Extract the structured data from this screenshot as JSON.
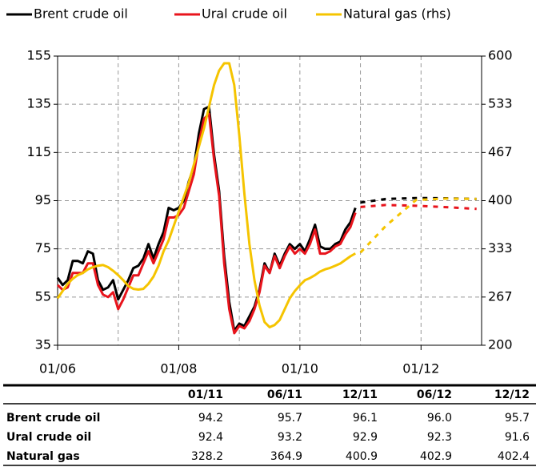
{
  "chart_data": {
    "type": "line",
    "x": [
      "01/06",
      "02/06",
      "03/06",
      "04/06",
      "05/06",
      "06/06",
      "07/06",
      "08/06",
      "09/06",
      "10/06",
      "11/06",
      "12/06",
      "01/07",
      "02/07",
      "03/07",
      "04/07",
      "05/07",
      "06/07",
      "07/07",
      "08/07",
      "09/07",
      "10/07",
      "11/07",
      "12/07",
      "01/08",
      "02/08",
      "03/08",
      "04/08",
      "05/08",
      "06/08",
      "07/08",
      "08/08",
      "09/08",
      "10/08",
      "11/08",
      "12/08",
      "01/09",
      "02/09",
      "03/09",
      "04/09",
      "05/09",
      "06/09",
      "07/09",
      "08/09",
      "09/09",
      "10/09",
      "11/09",
      "12/09",
      "01/10",
      "02/10",
      "03/10",
      "04/10",
      "05/10",
      "06/10",
      "07/10",
      "08/10",
      "09/10",
      "10/10",
      "11/10",
      "12/10"
    ],
    "series": [
      {
        "name": "Brent crude oil",
        "color": "#000000",
        "values": [
          63,
          60,
          62,
          70,
          70,
          69,
          74,
          73,
          62,
          58,
          59,
          62,
          54,
          58,
          62,
          67,
          68,
          71,
          77,
          71,
          77,
          82,
          92,
          91,
          92,
          95,
          103,
          109,
          123,
          133,
          134,
          114,
          99,
          72,
          53,
          41,
          44,
          43,
          47,
          51,
          58,
          69,
          65,
          73,
          68,
          73,
          77,
          75,
          77,
          74,
          79,
          85,
          76,
          75,
          75,
          77,
          78,
          83,
          86,
          92
        ]
      },
      {
        "name": "Ural crude oil",
        "color": "#e8141c",
        "values": [
          60,
          58,
          59,
          65,
          65,
          65,
          69,
          69,
          60,
          56,
          55,
          57,
          50,
          54,
          59,
          64,
          64,
          69,
          74,
          69,
          74,
          79,
          88,
          88,
          89,
          92,
          99,
          106,
          119,
          129,
          131,
          112,
          97,
          69,
          50,
          40,
          43,
          42,
          45,
          50,
          57,
          68,
          65,
          72,
          67,
          72,
          76,
          73,
          75,
          73,
          77,
          83,
          73,
          73,
          74,
          76,
          77,
          81,
          84,
          90
        ]
      },
      {
        "name": "Natural gas (rhs)",
        "color": "#f5c400",
        "axis": "y2",
        "values": [
          265,
          275,
          285,
          292,
          297,
          300,
          305,
          308,
          310,
          311,
          308,
          303,
          297,
          290,
          282,
          278,
          277,
          278,
          285,
          295,
          310,
          330,
          345,
          365,
          385,
          405,
          425,
          450,
          475,
          500,
          530,
          560,
          580,
          590,
          590,
          560,
          490,
          410,
          340,
          290,
          255,
          232,
          225,
          228,
          235,
          250,
          265,
          275,
          283,
          290,
          293,
          297,
          302,
          305,
          307,
          310,
          313,
          318,
          323,
          327
        ]
      }
    ],
    "xlim": [
      "01/06",
      "01/13"
    ],
    "xticks": [
      "01/06",
      "01/08",
      "01/10",
      "01/12"
    ],
    "ylim": [
      35,
      155
    ],
    "yticks": [
      35,
      55,
      75,
      95,
      115,
      135,
      155
    ],
    "y2lim": [
      200,
      600
    ],
    "y2ticks": [
      200,
      {
        "value": 266.67,
        "label": "267"
      },
      {
        "value": 333.33,
        "label": "333"
      },
      400,
      {
        "value": 466.67,
        "label": "467"
      },
      {
        "value": 533.33,
        "label": "533"
      },
      600
    ],
    "grid": true,
    "legend": "top"
  },
  "table": {
    "columns": [
      "01/11",
      "06/11",
      "12/11",
      "06/12",
      "12/12"
    ],
    "rows": [
      {
        "label": "Brent crude oil",
        "values": [
          "94.2",
          "95.7",
          "96.1",
          "96.0",
          "95.7"
        ]
      },
      {
        "label": "Ural crude oil",
        "values": [
          "92.4",
          "93.2",
          "92.9",
          "92.3",
          "91.6"
        ]
      },
      {
        "label": "Natural gas",
        "values": [
          "328.2",
          "364.9",
          "400.9",
          "402.9",
          "402.4"
        ]
      }
    ]
  }
}
